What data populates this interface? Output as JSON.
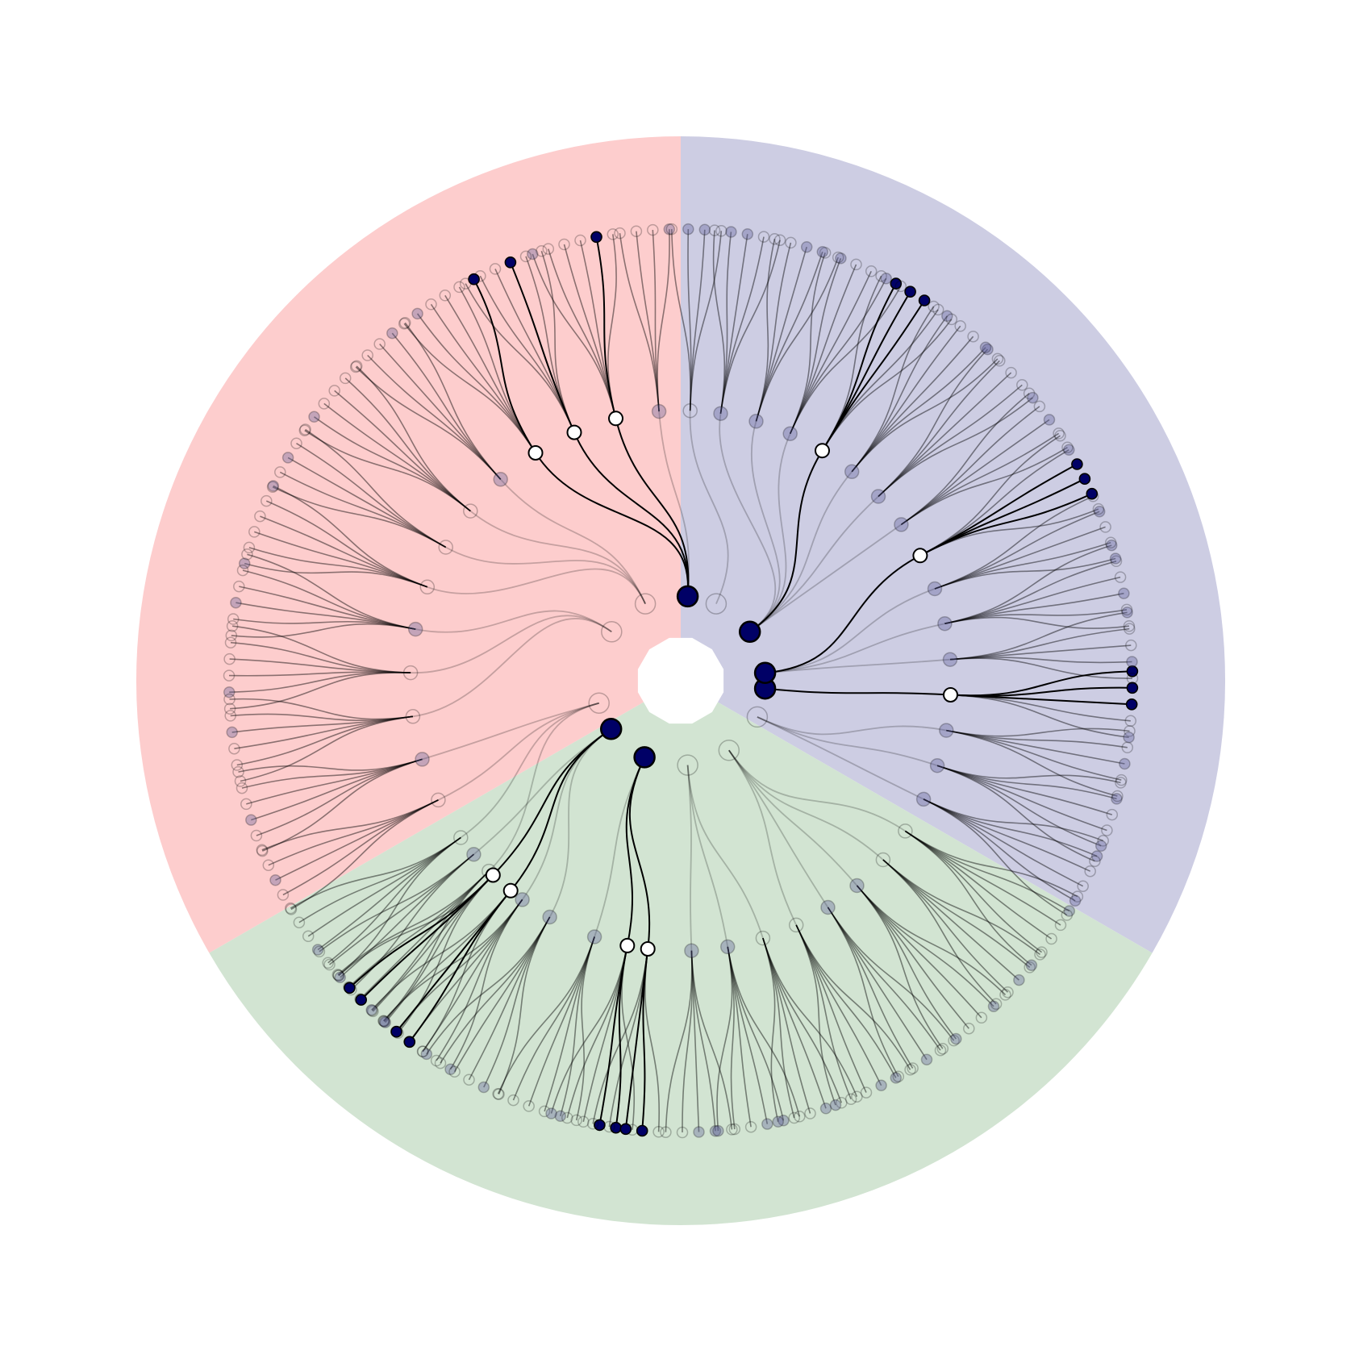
{
  "figure": {
    "type": "radial-tree",
    "colors": {
      "background": "#ffffff",
      "sector_top_left": "#fdcdcd",
      "sector_top_right": "#cdcde3",
      "sector_bottom": "#d2e4d2",
      "highlight_fill": "#000066",
      "node_stroke": "#000000",
      "edge": "#000000",
      "faded_filled": "#5a5a96",
      "open_fill": "#ffffff"
    },
    "sectors": [
      {
        "id": "top-left",
        "start_deg": -90,
        "end_deg": 150,
        "color_key": "sector_top_left"
      },
      {
        "id": "top-right",
        "start_deg": -90,
        "end_deg": 30,
        "color_key": "sector_top_right"
      },
      {
        "id": "bottom",
        "start_deg": 30,
        "end_deg": 150,
        "color_key": "sector_bottom"
      }
    ],
    "branches": [
      {
        "deg": -85.3,
        "state": "highlight",
        "mids": [
          {
            "deg": -94.6,
            "state": "faded-filled",
            "leaves": [
              "o",
              "o",
              "o",
              "f"
            ]
          },
          {
            "deg": -103.9,
            "state": "open-hl",
            "leaves": [
              "f",
              "o",
              "o",
              "o",
              "H",
              "o"
            ]
          },
          {
            "deg": -113.2,
            "state": "open-hl",
            "leaves": [
              "o",
              "o",
              "o",
              "H",
              "o",
              "o"
            ]
          },
          {
            "deg": -122.5,
            "state": "open-hl",
            "leaves": [
              "o",
              "f",
              "o",
              "o",
              "o",
              "H"
            ]
          }
        ]
      },
      {
        "deg": -114.7,
        "state": "faded-open",
        "mids": [
          {
            "deg": -131.8,
            "state": "faded-filled",
            "leaves": [
              "o",
              "o",
              "o",
              "f",
              "o"
            ]
          },
          {
            "deg": -141.1,
            "state": "faded-open",
            "leaves": [
              "o",
              "f",
              "o",
              "o",
              "o",
              "o"
            ]
          },
          {
            "deg": -150.4,
            "state": "faded-open",
            "leaves": [
              "o",
              "o",
              "f",
              "o",
              "o"
            ]
          },
          {
            "deg": -159.7,
            "state": "faded-open",
            "leaves": [
              "f",
              "o",
              "o",
              "o",
              "o",
              "f"
            ]
          }
        ]
      },
      {
        "deg": -144.7,
        "state": "faded-open",
        "mids": [
          {
            "deg": -169.0,
            "state": "faded-filled",
            "leaves": [
              "o",
              "o",
              "f",
              "o",
              "o",
              "o"
            ]
          },
          {
            "deg": -178.3,
            "state": "faded-open",
            "leaves": [
              "o",
              "f",
              "o",
              "o",
              "o",
              "o"
            ]
          },
          {
            "deg": 172.4,
            "state": "faded-open",
            "leaves": [
              "o",
              "o",
              "o",
              "f",
              "o",
              "o"
            ]
          }
        ]
      },
      {
        "deg": 164.7,
        "state": "faded-open",
        "mids": [
          {
            "deg": 163.1,
            "state": "faded-filled",
            "leaves": [
              "o",
              "o",
              "f",
              "o",
              "o",
              "o"
            ]
          },
          {
            "deg": 153.8,
            "state": "faded-open",
            "leaves": [
              "o",
              "o",
              "f",
              "o",
              "o"
            ]
          },
          {
            "deg": 144.5,
            "state": "faded-open",
            "leaves": [
              "o",
              "o",
              "f",
              "o",
              "o",
              "o"
            ]
          },
          {
            "deg": 135.2,
            "state": "faded-open",
            "leaves": [
              "f",
              "o",
              "o",
              "o",
              "o"
            ]
          }
        ]
      },
      {
        "deg": 145.3,
        "state": "highlight",
        "mids": [
          {
            "deg": 125.9,
            "state": "faded-filled",
            "leaves": [
              "f",
              "o",
              "o",
              "f",
              "o",
              "o"
            ]
          },
          {
            "deg": 119.0,
            "state": "faded-filled",
            "leaves": [
              "o",
              "f",
              "o",
              "o",
              "o",
              "f"
            ]
          },
          {
            "deg": 140.0,
            "state": "faded-filled",
            "leaves": [
              "o",
              "f",
              "o",
              "o"
            ]
          },
          {
            "deg": 134.0,
            "state": "open-hl",
            "leaves": [
              "o",
              "f",
              "o",
              "H",
              "H",
              "o"
            ]
          },
          {
            "deg": 129.0,
            "state": "open-hl",
            "leaves": [
              "o",
              "H",
              "H",
              "o",
              "f"
            ]
          }
        ]
      },
      {
        "deg": 115.3,
        "state": "highlight",
        "mids": [
          {
            "deg": 108.6,
            "state": "faded-filled",
            "leaves": [
              "o",
              "f",
              "o",
              "o",
              "o",
              "o"
            ]
          },
          {
            "deg": 101.4,
            "state": "open-hl",
            "leaves": [
              "o",
              "H",
              "H",
              "o",
              "o",
              "f"
            ]
          },
          {
            "deg": 97.0,
            "state": "open-hl",
            "leaves": [
              "o",
              "H",
              "H",
              "o",
              "o"
            ]
          }
        ]
      },
      {
        "deg": 85.3,
        "state": "faded-open",
        "mids": [
          {
            "deg": 87.7,
            "state": "faded-filled",
            "leaves": [
              "o",
              "f",
              "f",
              "o",
              "o"
            ]
          },
          {
            "deg": 80.0,
            "state": "faded-filled",
            "leaves": [
              "o",
              "f",
              "f",
              "o",
              "o",
              "f"
            ]
          },
          {
            "deg": 72.3,
            "state": "faded-open",
            "leaves": [
              "o",
              "o",
              "f",
              "o",
              "o",
              "f"
            ]
          }
        ]
      },
      {
        "deg": 55.3,
        "state": "faded-open",
        "mids": [
          {
            "deg": 64.7,
            "state": "faded-open",
            "leaves": [
              "o",
              "f",
              "f",
              "o",
              "o",
              "f"
            ]
          },
          {
            "deg": 57.0,
            "state": "faded-filled",
            "leaves": [
              "o",
              "o",
              "f",
              "o",
              "o"
            ]
          },
          {
            "deg": 49.3,
            "state": "faded-filled",
            "leaves": [
              "o",
              "f",
              "o",
              "o",
              "f",
              "o"
            ]
          },
          {
            "deg": 41.5,
            "state": "faded-open",
            "leaves": [
              "o",
              "o",
              "f",
              "o",
              "o"
            ]
          },
          {
            "deg": 33.8,
            "state": "faded-open",
            "leaves": [
              "o",
              "f",
              "o",
              "o",
              "o",
              "f"
            ]
          }
        ]
      },
      {
        "deg": 25.3,
        "state": "faded-filled-big",
        "mids": [
          {
            "deg": 26.0,
            "state": "faded-filled",
            "leaves": [
              "o",
              "f",
              "o",
              "o",
              "f",
              "o"
            ]
          },
          {
            "deg": 18.3,
            "state": "faded-filled",
            "leaves": [
              "o",
              "f",
              "o",
              "o",
              "f",
              "o"
            ]
          },
          {
            "deg": 10.6,
            "state": "faded-filled",
            "leaves": [
              "o",
              "o",
              "f",
              "o",
              "o"
            ]
          }
        ]
      },
      {
        "deg": 5.3,
        "state": "highlight",
        "mids": [
          {
            "deg": 3.0,
            "state": "open-hl",
            "leaves": [
              "H",
              "H",
              "H",
              "o",
              "f"
            ]
          }
        ]
      },
      {
        "deg": -5.3,
        "state": "highlight",
        "mids": [
          {
            "deg": -4.5,
            "state": "faded-filled",
            "leaves": [
              "f",
              "o",
              "o",
              "f",
              "o"
            ]
          },
          {
            "deg": -12.2,
            "state": "faded-filled",
            "leaves": [
              "f",
              "o",
              "o",
              "f",
              "o",
              "o"
            ]
          },
          {
            "deg": -19.9,
            "state": "faded-filled",
            "leaves": [
              "o",
              "f",
              "o",
              "o",
              "f"
            ]
          },
          {
            "deg": -27.6,
            "state": "open-hl",
            "leaves": [
              "o",
              "f",
              "H",
              "H",
              "H",
              "o"
            ]
          }
        ]
      },
      {
        "deg": -35.3,
        "state": "highlight",
        "mids": [
          {
            "deg": -35.3,
            "state": "faded-filled",
            "leaves": [
              "o",
              "o",
              "f",
              "o",
              "o"
            ]
          },
          {
            "deg": -43.0,
            "state": "faded-filled",
            "leaves": [
              "f",
              "o",
              "o",
              "o",
              "f"
            ]
          },
          {
            "deg": -50.7,
            "state": "faded-filled",
            "leaves": [
              "o",
              "f",
              "o",
              "o",
              "f",
              "o"
            ]
          },
          {
            "deg": -58.4,
            "state": "open-hl",
            "leaves": [
              "o",
              "H",
              "H",
              "H",
              "o",
              "o"
            ]
          },
          {
            "deg": -66.1,
            "state": "faded-filled",
            "leaves": [
              "o",
              "f",
              "o",
              "o",
              "f",
              "o"
            ]
          },
          {
            "deg": -73.8,
            "state": "faded-filled",
            "leaves": [
              "o",
              "o",
              "f",
              "f",
              "o"
            ]
          },
          {
            "deg": -81.5,
            "state": "faded-filled",
            "leaves": [
              "o",
              "f",
              "f",
              "o",
              "o"
            ]
          }
        ]
      },
      {
        "deg": -65.3,
        "state": "faded-open",
        "mids": [
          {
            "deg": -88.0,
            "state": "faded-open",
            "leaves": [
              "o",
              "f",
              "f",
              "o"
            ]
          }
        ]
      }
    ]
  }
}
